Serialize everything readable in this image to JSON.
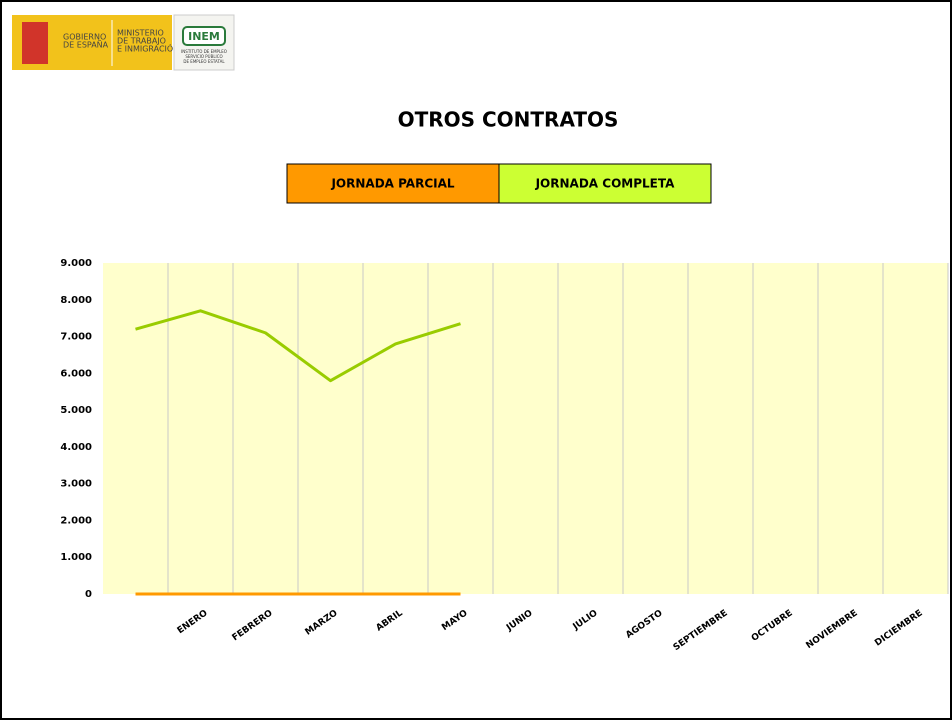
{
  "logo": {
    "gobierno": [
      "GOBIERNO",
      "DE ESPAÑA"
    ],
    "ministerio": [
      "MINISTERIO",
      "DE TRABAJO",
      "E INMIGRACIÓN"
    ],
    "inem": "INEM",
    "inem_subtitle": [
      "INSTITUTO DE EMPLEO",
      "SERVICIO PÚBLICO",
      "DE EMPLEO ESTATAL"
    ]
  },
  "chart_data": {
    "type": "line",
    "title": "OTROS CONTRATOS",
    "categories": [
      null,
      "ENERO",
      "FEBRERO",
      "MARZO",
      "ABRIL",
      "MAYO",
      "JUNIO",
      "JULIO",
      "AGOSTO",
      "SEPTIEMBRE",
      "OCTUBRE",
      "NOVIEMBRE",
      "DICIEMBRE"
    ],
    "series": [
      {
        "name": "JORNADA PARCIAL",
        "color": "#ff9900",
        "legend_color": "#ff9900",
        "values": [
          0,
          0,
          0,
          0,
          0,
          0,
          null,
          null,
          null,
          null,
          null,
          null,
          null
        ]
      },
      {
        "name": "JORNADA COMPLETA",
        "color": "#99cc00",
        "legend_color": "#ccff33",
        "values": [
          7200,
          7700,
          7100,
          5800,
          6800,
          7350,
          null,
          null,
          null,
          null,
          null,
          null,
          null
        ]
      }
    ],
    "ylim": [
      0,
      9000
    ],
    "yticks": [
      0,
      {
        "value": 1000,
        "label": "1.000"
      },
      {
        "value": 2000,
        "label": "2.000"
      },
      {
        "value": 3000,
        "label": "3.000"
      },
      {
        "value": 4000,
        "label": "4.000"
      },
      {
        "value": 5000,
        "label": "5.000"
      },
      {
        "value": 6000,
        "label": "6.000"
      },
      {
        "value": 7000,
        "label": "7.000"
      },
      {
        "value": 8000,
        "label": "8.000"
      },
      {
        "value": 9000,
        "label": "9.000"
      }
    ],
    "plot_background": "#ffffcc",
    "grid": "vertical"
  }
}
